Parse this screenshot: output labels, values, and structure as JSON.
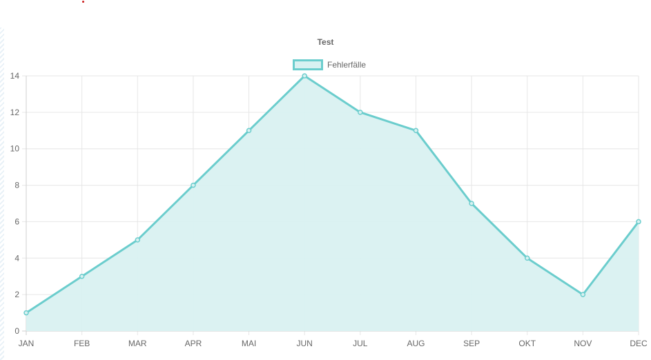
{
  "chart_data": {
    "type": "line",
    "title": "Test",
    "categories": [
      "JAN",
      "FEB",
      "MAR",
      "APR",
      "MAI",
      "JUN",
      "JUL",
      "AUG",
      "SEP",
      "OKT",
      "NOV",
      "DEC"
    ],
    "series": [
      {
        "name": "Fehlerfälle",
        "values": [
          1,
          3,
          5,
          8,
          11,
          14,
          12,
          11,
          7,
          4,
          2,
          6
        ]
      }
    ],
    "ylim": [
      0,
      14
    ],
    "yticks": [
      0,
      2,
      4,
      6,
      8,
      10,
      12,
      14
    ],
    "grid": true,
    "legend_position": "top",
    "fill": true,
    "colors": {
      "line": "#6bcdcd",
      "fill": "#d9f1f1",
      "grid": "#e6e6e6",
      "text": "#666666"
    }
  }
}
